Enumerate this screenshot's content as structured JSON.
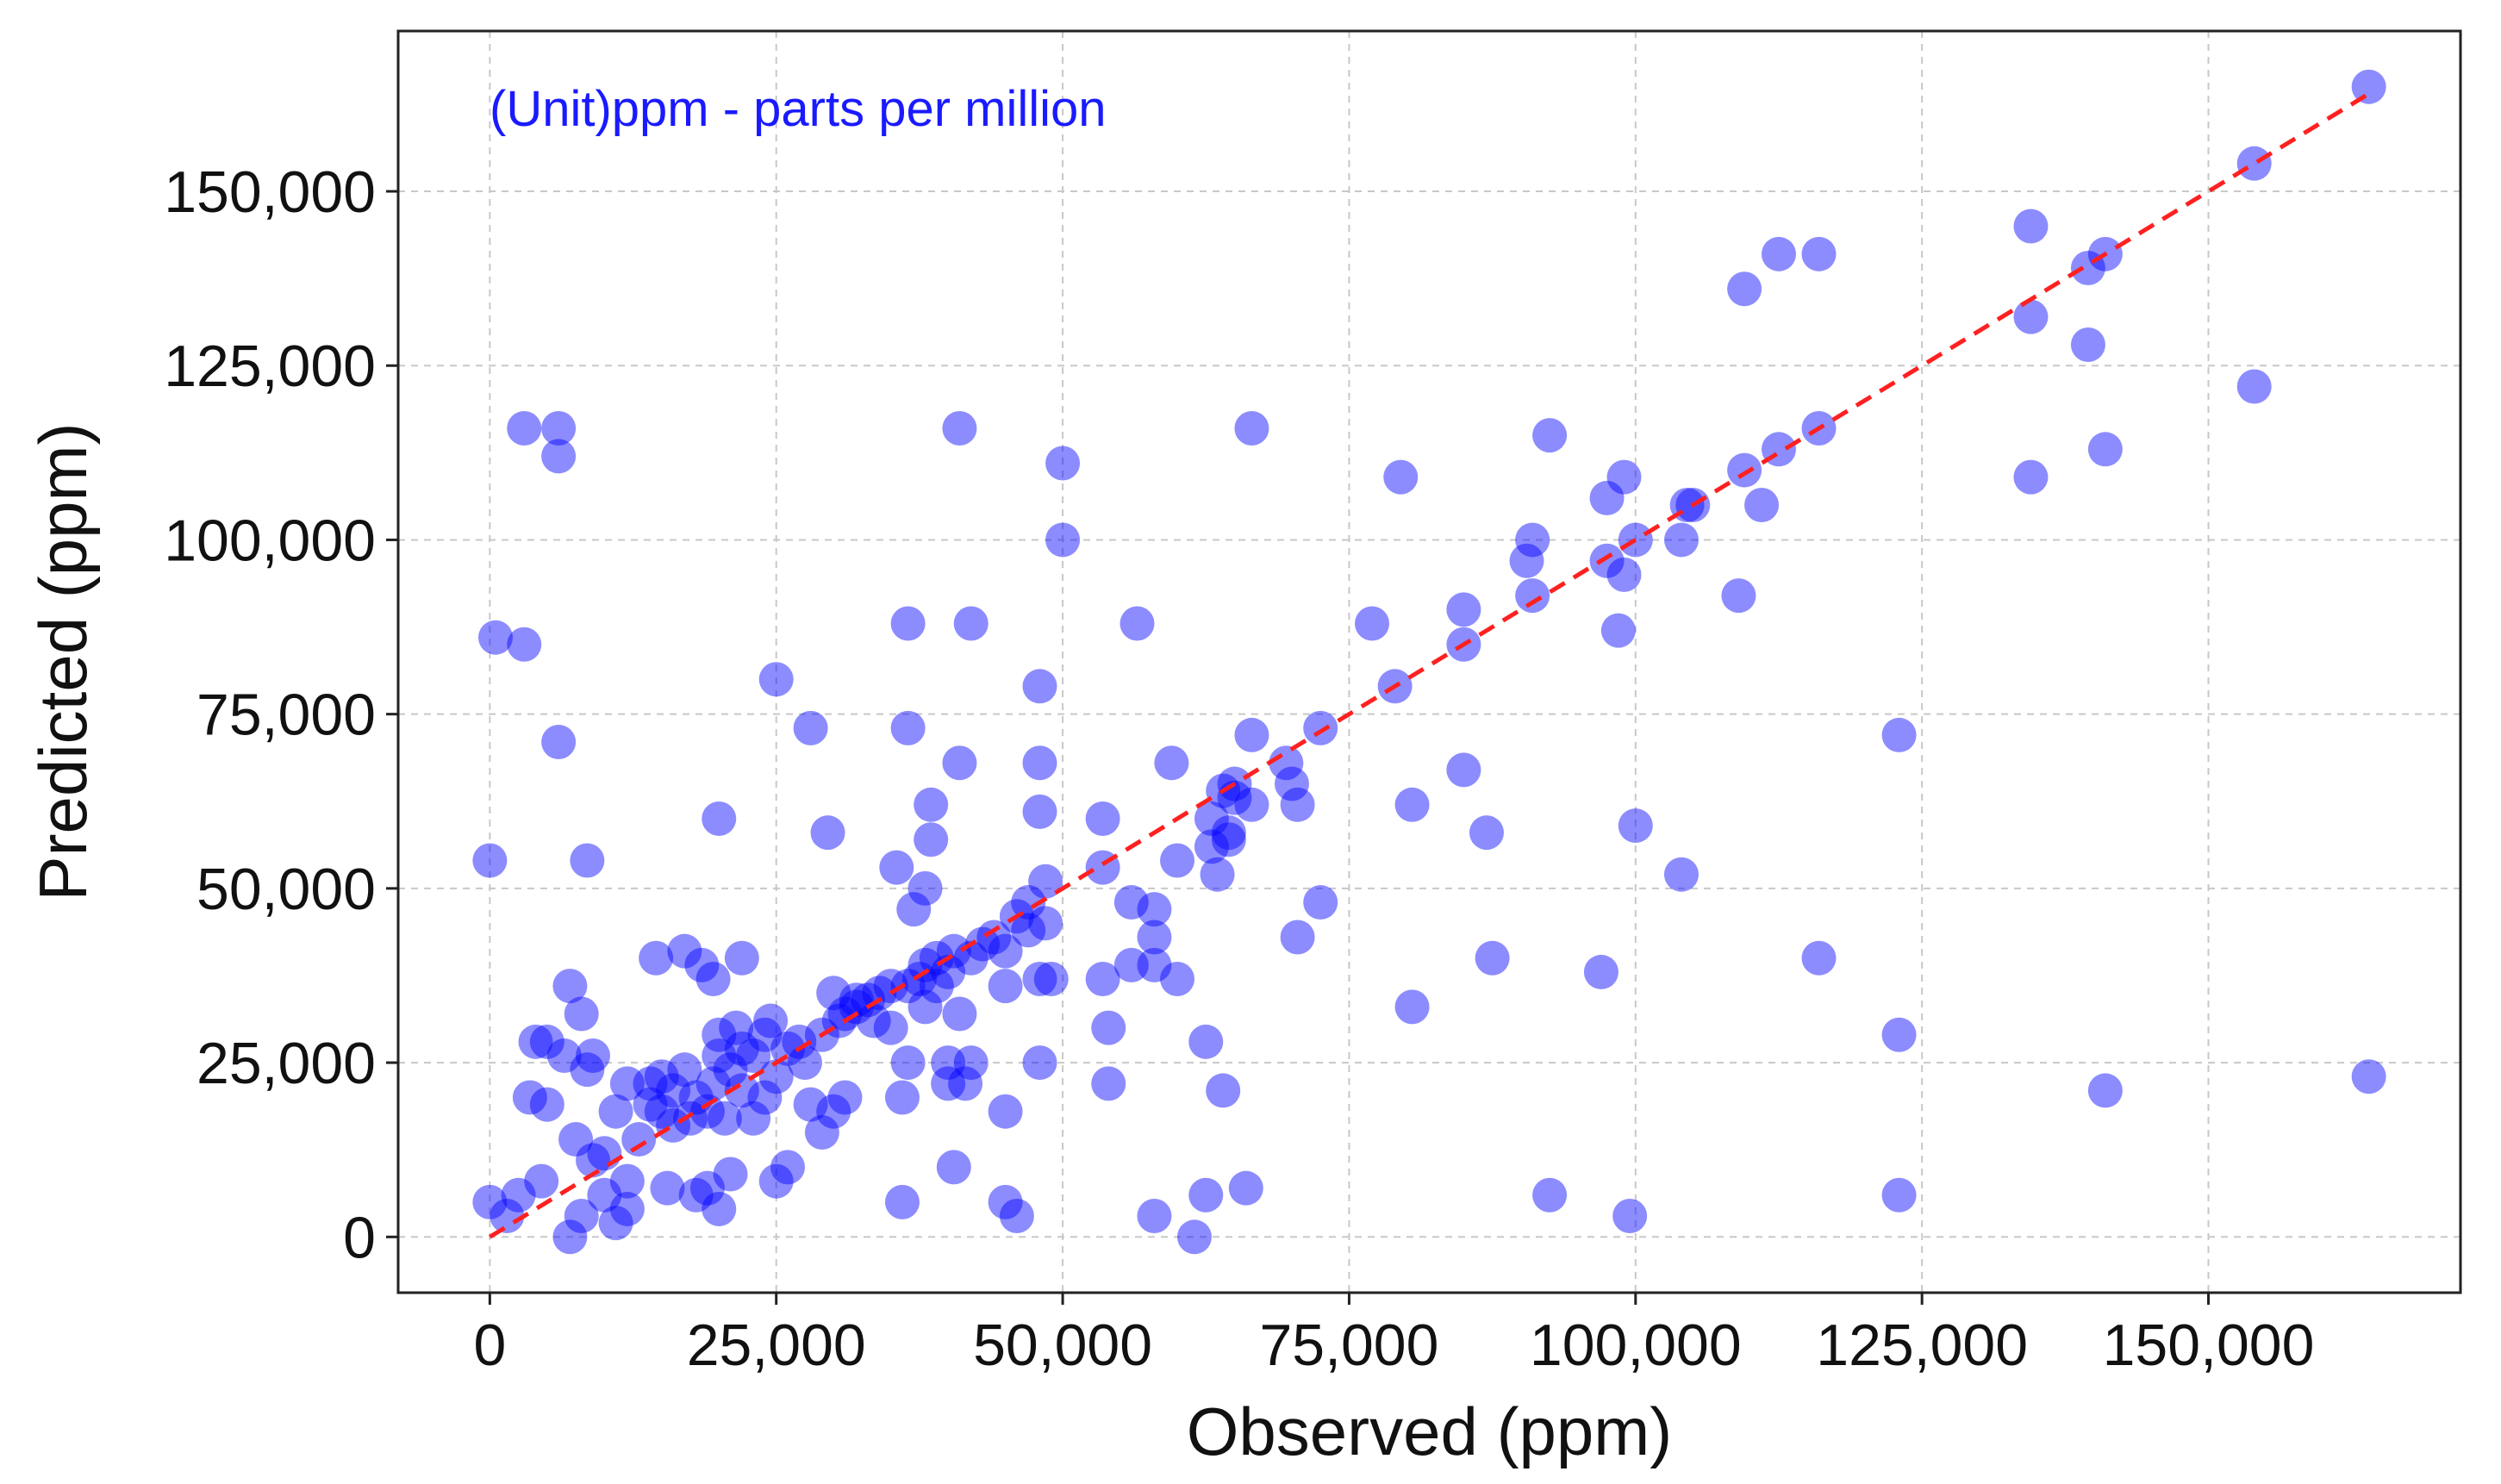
{
  "chart_data": {
    "type": "scatter",
    "title": "",
    "xlabel": "Observed (ppm)",
    "ylabel": "Predicted (ppm)",
    "annotation": "(Unit)ppm - parts per million",
    "xlim": [
      -8000,
      172000
    ],
    "ylim": [
      -8000,
      173000
    ],
    "x_ticks": [
      0,
      25000,
      50000,
      75000,
      100000,
      125000,
      150000
    ],
    "x_tick_labels": [
      "0",
      "25,000",
      "50,000",
      "75,000",
      "100,000",
      "125,000",
      "150,000"
    ],
    "y_ticks": [
      0,
      25000,
      50000,
      75000,
      100000,
      125000,
      150000
    ],
    "y_tick_labels": [
      "0",
      "25,000",
      "50,000",
      "75,000",
      "100,000",
      "125,000",
      "150,000"
    ],
    "grid": true,
    "colors": {
      "points": "#0000ff",
      "reference_line": "#ff2020",
      "annotation": "#1a1aff",
      "grid": "#c8c8c8",
      "frame": "#222222"
    },
    "reference_line": {
      "from": [
        0,
        0
      ],
      "to": [
        164000,
        164000
      ],
      "style": "dashed"
    },
    "points": [
      [
        0,
        5000
      ],
      [
        0,
        54000
      ],
      [
        500,
        86000
      ],
      [
        1500,
        3000
      ],
      [
        2500,
        6000
      ],
      [
        3000,
        85000
      ],
      [
        3000,
        116000
      ],
      [
        3500,
        20000
      ],
      [
        4000,
        28000
      ],
      [
        4500,
        8000
      ],
      [
        5000,
        19000
      ],
      [
        5000,
        28000
      ],
      [
        6000,
        71000
      ],
      [
        6000,
        112000
      ],
      [
        6000,
        116000
      ],
      [
        6500,
        26000
      ],
      [
        7000,
        36000
      ],
      [
        7000,
        0
      ],
      [
        7500,
        14000
      ],
      [
        8000,
        32000
      ],
      [
        8000,
        3000
      ],
      [
        8500,
        54000
      ],
      [
        8500,
        24000
      ],
      [
        9000,
        26000
      ],
      [
        9000,
        11000
      ],
      [
        10000,
        12000
      ],
      [
        10000,
        6000
      ],
      [
        11000,
        18000
      ],
      [
        11000,
        2000
      ],
      [
        12000,
        22000
      ],
      [
        12000,
        8000
      ],
      [
        12000,
        4000
      ],
      [
        13000,
        14000
      ],
      [
        14000,
        19000
      ],
      [
        14000,
        22000
      ],
      [
        14500,
        40000
      ],
      [
        15000,
        18000
      ],
      [
        15000,
        23000
      ],
      [
        15500,
        7000
      ],
      [
        16000,
        16000
      ],
      [
        16000,
        21000
      ],
      [
        17000,
        24000
      ],
      [
        17500,
        17000
      ],
      [
        17000,
        41000
      ],
      [
        18000,
        20000
      ],
      [
        18000,
        6000
      ],
      [
        18500,
        39000
      ],
      [
        19000,
        18000
      ],
      [
        19000,
        7000
      ],
      [
        19500,
        37000
      ],
      [
        19500,
        22000
      ],
      [
        20000,
        29000
      ],
      [
        20000,
        26000
      ],
      [
        20000,
        60000
      ],
      [
        20000,
        4000
      ],
      [
        20500,
        17000
      ],
      [
        21000,
        24000
      ],
      [
        21000,
        9000
      ],
      [
        21500,
        30000
      ],
      [
        22000,
        27000
      ],
      [
        22000,
        21000
      ],
      [
        22000,
        40000
      ],
      [
        23000,
        17000
      ],
      [
        23000,
        26000
      ],
      [
        24000,
        29000
      ],
      [
        24000,
        20000
      ],
      [
        24500,
        31000
      ],
      [
        25000,
        80000
      ],
      [
        25000,
        8000
      ],
      [
        25000,
        23000
      ],
      [
        26000,
        27000
      ],
      [
        26000,
        10000
      ],
      [
        27000,
        28000
      ],
      [
        27500,
        25000
      ],
      [
        28000,
        73000
      ],
      [
        28000,
        19000
      ],
      [
        29000,
        29000
      ],
      [
        29000,
        15000
      ],
      [
        29500,
        58000
      ],
      [
        30000,
        35000
      ],
      [
        30000,
        18000
      ],
      [
        30500,
        31000
      ],
      [
        31000,
        32000
      ],
      [
        31000,
        20000
      ],
      [
        32000,
        33000
      ],
      [
        32000,
        34000
      ],
      [
        33000,
        34000
      ],
      [
        33500,
        31000
      ],
      [
        34000,
        35000
      ],
      [
        35000,
        30000
      ],
      [
        35000,
        36000
      ],
      [
        35500,
        53000
      ],
      [
        36000,
        5000
      ],
      [
        36000,
        20000
      ],
      [
        36500,
        25000
      ],
      [
        36500,
        36000
      ],
      [
        36500,
        73000
      ],
      [
        36500,
        88000
      ],
      [
        37000,
        47000
      ],
      [
        37500,
        37000
      ],
      [
        38000,
        39000
      ],
      [
        38000,
        33000
      ],
      [
        38000,
        50000
      ],
      [
        38500,
        62000
      ],
      [
        38500,
        57000
      ],
      [
        39000,
        40000
      ],
      [
        39000,
        36000
      ],
      [
        40000,
        38000
      ],
      [
        40000,
        22000
      ],
      [
        40000,
        25000
      ],
      [
        40500,
        41000
      ],
      [
        40500,
        10000
      ],
      [
        41000,
        32000
      ],
      [
        41000,
        116000
      ],
      [
        41000,
        68000
      ],
      [
        41500,
        22000
      ],
      [
        42000,
        25000
      ],
      [
        42000,
        88000
      ],
      [
        42000,
        40000
      ],
      [
        43000,
        42000
      ],
      [
        44000,
        43000
      ],
      [
        45000,
        41000
      ],
      [
        45000,
        36000
      ],
      [
        45000,
        18000
      ],
      [
        45000,
        5000
      ],
      [
        46000,
        46000
      ],
      [
        46000,
        3000
      ],
      [
        47000,
        44000
      ],
      [
        47000,
        48000
      ],
      [
        48000,
        61000
      ],
      [
        48000,
        68000
      ],
      [
        48000,
        79000
      ],
      [
        48000,
        37000
      ],
      [
        48000,
        25000
      ],
      [
        48500,
        51000
      ],
      [
        48500,
        45000
      ],
      [
        49000,
        37000
      ],
      [
        50000,
        111000
      ],
      [
        50000,
        100000
      ],
      [
        53500,
        60000
      ],
      [
        53500,
        53000
      ],
      [
        53500,
        37000
      ],
      [
        54000,
        22000
      ],
      [
        54000,
        30000
      ],
      [
        56000,
        39000
      ],
      [
        56000,
        48000
      ],
      [
        56500,
        88000
      ],
      [
        58000,
        47000
      ],
      [
        58000,
        43000
      ],
      [
        58000,
        39000
      ],
      [
        58000,
        3000
      ],
      [
        59500,
        68000
      ],
      [
        60000,
        37000
      ],
      [
        60000,
        54000
      ],
      [
        61500,
        0
      ],
      [
        62500,
        6000
      ],
      [
        62500,
        28000
      ],
      [
        63000,
        60000
      ],
      [
        63000,
        56000
      ],
      [
        63500,
        52000
      ],
      [
        64000,
        64000
      ],
      [
        64000,
        21000
      ],
      [
        64500,
        58000
      ],
      [
        64500,
        57000
      ],
      [
        65000,
        63000
      ],
      [
        65000,
        65000
      ],
      [
        66000,
        7000
      ],
      [
        66500,
        62000
      ],
      [
        66500,
        72000
      ],
      [
        66500,
        116000
      ],
      [
        69500,
        68000
      ],
      [
        70000,
        65000
      ],
      [
        70500,
        62000
      ],
      [
        70500,
        43000
      ],
      [
        72500,
        48000
      ],
      [
        72500,
        73000
      ],
      [
        77000,
        88000
      ],
      [
        79000,
        79000
      ],
      [
        79500,
        109000
      ],
      [
        80500,
        62000
      ],
      [
        80500,
        33000
      ],
      [
        85000,
        67000
      ],
      [
        85000,
        85000
      ],
      [
        85000,
        90000
      ],
      [
        87000,
        58000
      ],
      [
        87500,
        40000
      ],
      [
        90500,
        97000
      ],
      [
        91000,
        100000
      ],
      [
        91000,
        92000
      ],
      [
        92500,
        6000
      ],
      [
        92500,
        115000
      ],
      [
        97000,
        38000
      ],
      [
        97500,
        106000
      ],
      [
        97500,
        97000
      ],
      [
        98500,
        87000
      ],
      [
        99000,
        95000
      ],
      [
        99000,
        109000
      ],
      [
        99500,
        3000
      ],
      [
        100000,
        59000
      ],
      [
        100000,
        100000
      ],
      [
        104000,
        100000
      ],
      [
        104000,
        52000
      ],
      [
        104500,
        105000
      ],
      [
        105000,
        105000
      ],
      [
        109000,
        92000
      ],
      [
        109500,
        136000
      ],
      [
        109500,
        110000
      ],
      [
        111000,
        105000
      ],
      [
        112500,
        113000
      ],
      [
        112500,
        141000
      ],
      [
        116000,
        116000
      ],
      [
        116000,
        40000
      ],
      [
        116000,
        141000
      ],
      [
        123000,
        72000
      ],
      [
        123000,
        29000
      ],
      [
        123000,
        6000
      ],
      [
        134500,
        109000
      ],
      [
        134500,
        132000
      ],
      [
        134500,
        145000
      ],
      [
        139500,
        128000
      ],
      [
        139500,
        139000
      ],
      [
        141000,
        141000
      ],
      [
        141000,
        21000
      ],
      [
        141000,
        113000
      ],
      [
        154000,
        154000
      ],
      [
        154000,
        122000
      ],
      [
        164000,
        165000
      ],
      [
        164000,
        23000
      ]
    ]
  }
}
